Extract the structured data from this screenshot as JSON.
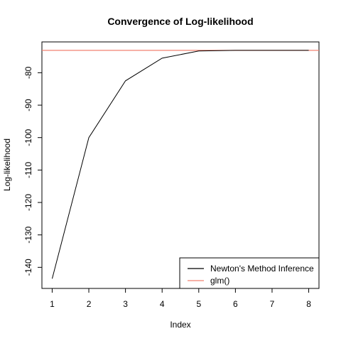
{
  "chart_data": {
    "type": "line",
    "title": "Convergence of Log-likelihood",
    "xlabel": "Index",
    "ylabel": "Log-likelihood",
    "x": [
      1,
      2,
      3,
      4,
      5,
      6,
      7,
      8
    ],
    "xlim": [
      0.72,
      8.28
    ],
    "ylim": [
      -146.5,
      -70.5
    ],
    "x_ticks": [
      "1",
      "2",
      "3",
      "4",
      "5",
      "6",
      "7",
      "8"
    ],
    "y_ticks": [
      -80,
      -90,
      -100,
      -110,
      -120,
      -130,
      -140
    ],
    "y_tick_labels": [
      "-80",
      "-90",
      "-100",
      "-110",
      "-120",
      "-130",
      "-140"
    ],
    "series": [
      {
        "name": "Newton's Method Inference",
        "color": "#000000",
        "values": [
          -143.5,
          -100.0,
          -82.5,
          -75.5,
          -73.3,
          -73.1,
          -73.1,
          -73.1
        ]
      }
    ],
    "reference_line": {
      "name": "glm()",
      "color": "#f08070",
      "value": -73.1
    },
    "legend": {
      "position": "bottom-right",
      "items": [
        "Newton's Method Inference",
        "glm()"
      ]
    },
    "grid": false
  }
}
